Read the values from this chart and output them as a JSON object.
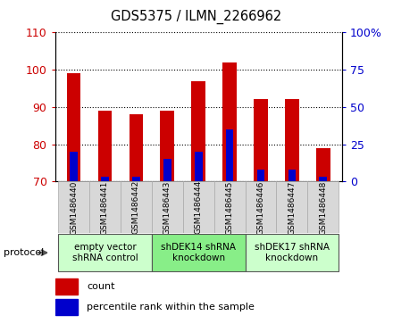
{
  "title": "GDS5375 / ILMN_2266962",
  "samples": [
    "GSM1486440",
    "GSM1486441",
    "GSM1486442",
    "GSM1486443",
    "GSM1486444",
    "GSM1486445",
    "GSM1486446",
    "GSM1486447",
    "GSM1486448"
  ],
  "count_values": [
    99,
    89,
    88,
    89,
    97,
    102,
    92,
    92,
    79
  ],
  "percentile_values": [
    20,
    3,
    3,
    15,
    20,
    35,
    8,
    8,
    3
  ],
  "ylim_left": [
    70,
    110
  ],
  "ylim_right": [
    0,
    100
  ],
  "yticks_left": [
    70,
    80,
    90,
    100,
    110
  ],
  "yticks_right": [
    0,
    25,
    50,
    75,
    100
  ],
  "bar_color_red": "#cc0000",
  "bar_color_blue": "#0000cc",
  "bar_width": 0.45,
  "blue_bar_width": 0.25,
  "groups": [
    {
      "label": "empty vector\nshRNA control",
      "indices": [
        0,
        1,
        2
      ],
      "color": "#ccffcc"
    },
    {
      "label": "shDEK14 shRNA\nknockdown",
      "indices": [
        3,
        4,
        5
      ],
      "color": "#88ee88"
    },
    {
      "label": "shDEK17 shRNA\nknockdown",
      "indices": [
        6,
        7,
        8
      ],
      "color": "#ccffcc"
    }
  ],
  "legend_count": "count",
  "legend_percentile": "percentile rank within the sample",
  "protocol_label": "protocol",
  "bg_color": "#e8e8e8",
  "plot_bg": "#ffffff",
  "sample_box_color": "#d8d8d8",
  "left_axis_color": "#cc0000",
  "right_axis_color": "#0000cc"
}
